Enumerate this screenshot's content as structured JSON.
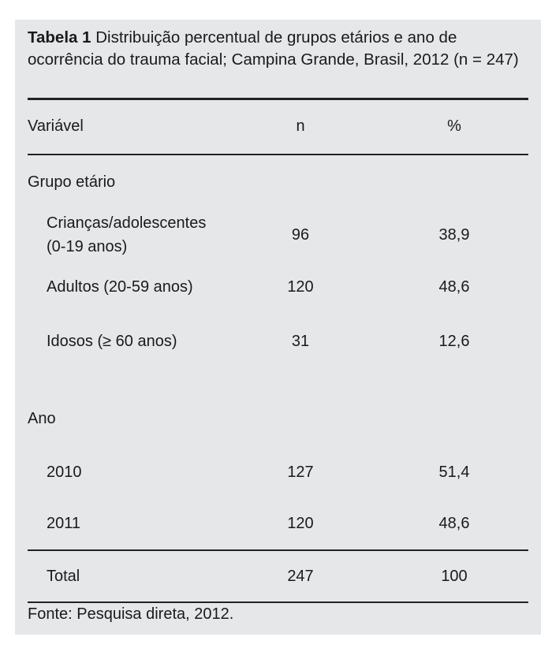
{
  "table": {
    "label": "Tabela 1",
    "caption": "Distribuição percentual de grupos etários e ano de ocorrência do trauma facial; Campina Grande, Brasil, 2012 (n = 247)",
    "headers": [
      "Variável",
      "n",
      "%"
    ],
    "groups": [
      {
        "title": "Grupo etário",
        "rows": [
          {
            "label": "Crianças/adolescentes",
            "label2": "(0-19 anos)",
            "n": "96",
            "pct": "38,9"
          },
          {
            "label": "Adultos (20-59 anos)",
            "n": "120",
            "pct": "48,6"
          },
          {
            "label": "Idosos (≥ 60 anos)",
            "n": "31",
            "pct": "12,6"
          }
        ]
      },
      {
        "title": "Ano",
        "rows": [
          {
            "label": "2010",
            "n": "127",
            "pct": "51,4"
          },
          {
            "label": "2011",
            "n": "120",
            "pct": "48,6"
          }
        ]
      }
    ],
    "total": {
      "label": "Total",
      "n": "247",
      "pct": "100"
    },
    "source": "Fonte: Pesquisa direta, 2012."
  },
  "colors": {
    "panel": "#e6e7e9",
    "rule": "#222222"
  }
}
